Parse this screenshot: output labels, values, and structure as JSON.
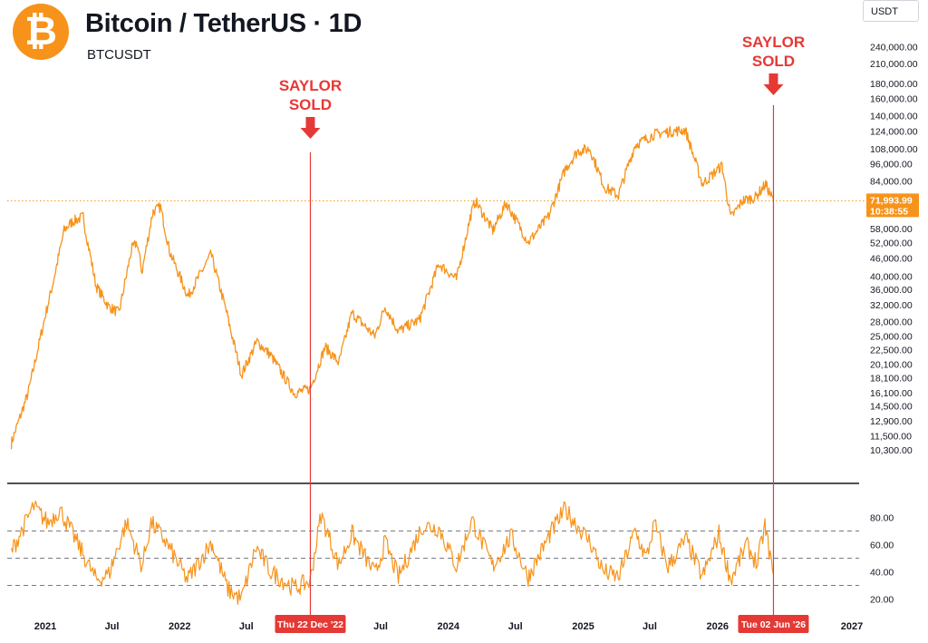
{
  "header": {
    "logo_glyph": "₿",
    "title": "Bitcoin / TetherUS · 1D",
    "symbol": "BTCUSDT",
    "currency": "USDT"
  },
  "colors": {
    "price": "#f7931a",
    "annotation": "#e53935",
    "axis_price_label": "#f7931a",
    "background": "#ffffff"
  },
  "chart_data": [
    {
      "type": "line",
      "title": "Bitcoin / TetherUS · 1D",
      "scale": "log",
      "series": [
        {
          "x": [
            "2020-10-01",
            "2020-11-15",
            "2020-12-31",
            "2021-01-20",
            "2021-02-21",
            "2021-03-14",
            "2021-04-14",
            "2021-05-19",
            "2021-06-22",
            "2021-07-20",
            "2021-08-23",
            "2021-09-07",
            "2021-09-21",
            "2021-10-20",
            "2021-11-10",
            "2021-12-04",
            "2022-01-24",
            "2022-03-28",
            "2022-05-12",
            "2022-06-18",
            "2022-07-30",
            "2022-09-06",
            "2022-11-09",
            "2022-12-22",
            "2023-01-31",
            "2023-03-10",
            "2023-04-14",
            "2023-06-15",
            "2023-07-13",
            "2023-08-18",
            "2023-10-16",
            "2023-12-06",
            "2024-01-23",
            "2024-02-28",
            "2024-03-14",
            "2024-05-01",
            "2024-06-07",
            "2024-08-05",
            "2024-09-30",
            "2024-11-13",
            "2024-12-17",
            "2025-01-20",
            "2025-02-28",
            "2025-04-07",
            "2025-05-22",
            "2025-07-14",
            "2025-08-14",
            "2025-10-06",
            "2025-11-21",
            "2026-01-14",
            "2026-02-06",
            "2026-03-10",
            "2026-04-14",
            "2026-05-12",
            "2026-06-02"
          ],
          "y": [
            10800,
            16000,
            29000,
            37000,
            57000,
            61000,
            63500,
            37000,
            31500,
            30000,
            49000,
            52000,
            41000,
            66000,
            68500,
            49000,
            34000,
            47500,
            29000,
            18500,
            24000,
            21500,
            16000,
            16600,
            23000,
            20300,
            30000,
            25000,
            31500,
            26000,
            28500,
            44000,
            39000,
            62000,
            72000,
            57000,
            71000,
            52000,
            64000,
            92000,
            106000,
            108000,
            80000,
            75000,
            111000,
            121000,
            123000,
            125000,
            82000,
            95000,
            63000,
            72000,
            74000,
            82000,
            71994
          ]
        }
      ],
      "y_ticks": [
        "240,000.00",
        "210,000.00",
        "180,000.00",
        "160,000.00",
        "140,000.00",
        "124,000.00",
        "108,000.00",
        "96,000.00",
        "84,000.00",
        "58,000.00",
        "52,000.00",
        "46,000.00",
        "40,000.00",
        "36,000.00",
        "32,000.00",
        "28,000.00",
        "25,000.00",
        "22,500.00",
        "20,100.00",
        "18,100.00",
        "16,100.00",
        "14,500.00",
        "12,900.00",
        "11,500.00",
        "10,300.00"
      ],
      "last_price_label": "71,993.99",
      "countdown_label": "10:38:55",
      "annotations": [
        {
          "text_line1": "SAYLOR",
          "text_line2": "SOLD",
          "date": "2022-12-22",
          "date_label": "Thu 22 Dec '22"
        },
        {
          "text_line1": "SAYLOR",
          "text_line2": "SOLD",
          "date": "2026-06-02",
          "date_label": "Tue 02 Jun '26"
        }
      ]
    },
    {
      "type": "line",
      "ylim": [
        15,
        95
      ],
      "y_ticks": [
        "80.00",
        "60.00",
        "40.00",
        "20.00"
      ],
      "reference_lines": [
        70,
        50,
        30
      ],
      "series": [
        {
          "x": [
            "2020-10-01",
            "2020-12-01",
            "2021-01-08",
            "2021-02-10",
            "2021-03-20",
            "2021-05-19",
            "2021-06-22",
            "2021-08-10",
            "2021-09-21",
            "2021-10-15",
            "2021-11-20",
            "2022-01-22",
            "2022-03-29",
            "2022-05-12",
            "2022-06-18",
            "2022-07-28",
            "2022-09-06",
            "2022-11-09",
            "2022-12-22",
            "2023-01-20",
            "2023-03-10",
            "2023-04-14",
            "2023-06-16",
            "2023-07-13",
            "2023-08-18",
            "2023-10-24",
            "2023-12-06",
            "2024-01-23",
            "2024-03-05",
            "2024-05-01",
            "2024-06-20",
            "2024-08-05",
            "2024-09-30",
            "2024-11-13",
            "2025-01-20",
            "2025-02-26",
            "2025-04-07",
            "2025-05-22",
            "2025-06-22",
            "2025-07-14",
            "2025-08-20",
            "2025-10-08",
            "2025-11-21",
            "2026-01-05",
            "2026-02-06",
            "2026-03-20",
            "2026-04-20",
            "2026-05-10",
            "2026-06-02"
          ],
          "y": [
            55,
            88,
            76,
            86,
            66,
            34,
            38,
            76,
            44,
            76,
            64,
            34,
            62,
            27,
            20,
            58,
            40,
            28,
            33,
            82,
            45,
            68,
            38,
            62,
            36,
            74,
            72,
            44,
            78,
            44,
            66,
            36,
            66,
            86,
            62,
            40,
            36,
            70,
            50,
            75,
            44,
            64,
            36,
            68,
            34,
            60,
            46,
            74,
            38
          ]
        }
      ]
    }
  ],
  "x_axis": {
    "ticks": [
      {
        "label": "2021",
        "date": "2021-01-01"
      },
      {
        "label": "Jul",
        "date": "2021-07-01"
      },
      {
        "label": "2022",
        "date": "2022-01-01"
      },
      {
        "label": "Jul",
        "date": "2022-07-01"
      },
      {
        "label": "Jul",
        "date": "2023-07-01"
      },
      {
        "label": "2024",
        "date": "2024-01-01"
      },
      {
        "label": "Jul",
        "date": "2024-07-01"
      },
      {
        "label": "2025",
        "date": "2025-01-01"
      },
      {
        "label": "Jul",
        "date": "2025-07-01"
      },
      {
        "label": "2026",
        "date": "2026-01-01"
      },
      {
        "label": "2027",
        "date": "2027-01-01"
      }
    ]
  }
}
